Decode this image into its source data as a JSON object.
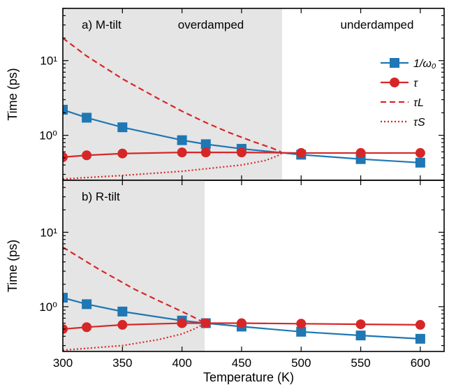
{
  "chart_data": {
    "type": "line",
    "shared": {
      "xlabel": "Temperature (K)",
      "xlim": [
        300,
        620
      ],
      "xticks": [
        300,
        350,
        400,
        450,
        500,
        550,
        600
      ],
      "ylabel": "Time (ps)",
      "yscale": "log",
      "ylim": [
        0.25,
        50
      ],
      "ytick_labels": [
        "10⁰",
        "10¹"
      ],
      "colors": {
        "blue": "#1f77b4",
        "red": "#d62728",
        "shade": "#e5e5e5"
      }
    },
    "legend": {
      "placement": "right, top panel",
      "entries": [
        {
          "key": "inv_omega0",
          "label": "1/ω₀",
          "marker": "square",
          "line": "solid",
          "color": "#1f77b4"
        },
        {
          "key": "tau",
          "label": "τ",
          "marker": "circle",
          "line": "solid",
          "color": "#d62728"
        },
        {
          "key": "tauL",
          "label": "τL",
          "marker": "none",
          "line": "dashed",
          "color": "#d62728"
        },
        {
          "key": "tauS",
          "label": "τS",
          "marker": "none",
          "line": "dotted",
          "color": "#d62728"
        }
      ]
    },
    "panels": [
      {
        "label": "a) M-tilt",
        "overdamped_label": "overdamped",
        "underdamped_label": "underdamped",
        "shade_range": [
          300,
          484
        ],
        "series": [
          {
            "key": "inv_omega0",
            "x": [
              300,
              320,
              350,
              400,
              420,
              450,
              500,
              550,
              600
            ],
            "y": [
              2.2,
              1.72,
              1.28,
              0.86,
              0.76,
              0.66,
              0.55,
              0.48,
              0.43
            ]
          },
          {
            "key": "tau",
            "x": [
              300,
              320,
              350,
              400,
              420,
              450,
              500,
              550,
              600
            ],
            "y": [
              0.51,
              0.54,
              0.57,
              0.59,
              0.59,
              0.59,
              0.58,
              0.58,
              0.58
            ]
          },
          {
            "key": "tauL",
            "x": [
              300,
              320,
              350,
              380,
              400,
              420,
              440,
              460,
              475,
              482,
              484
            ],
            "y": [
              20,
              11.5,
              5.7,
              3.1,
              2.1,
              1.48,
              1.08,
              0.82,
              0.68,
              0.61,
              0.58
            ]
          },
          {
            "key": "tauS",
            "x": [
              300,
              350,
              400,
              450,
              470,
              480,
              484
            ],
            "y": [
              0.26,
              0.29,
              0.33,
              0.4,
              0.46,
              0.53,
              0.58
            ]
          }
        ]
      },
      {
        "label": "b) R-tilt",
        "shade_range": [
          300,
          419
        ],
        "series": [
          {
            "key": "inv_omega0",
            "x": [
              300,
              320,
              350,
              400,
              420,
              450,
              500,
              550,
              600
            ],
            "y": [
              1.32,
              1.08,
              0.86,
              0.65,
              0.6,
              0.54,
              0.46,
              0.41,
              0.37
            ]
          },
          {
            "key": "tau",
            "x": [
              300,
              320,
              350,
              400,
              420,
              450,
              500,
              550,
              600
            ],
            "y": [
              0.5,
              0.53,
              0.57,
              0.6,
              0.6,
              0.6,
              0.59,
              0.58,
              0.57
            ]
          },
          {
            "key": "tauL",
            "x": [
              300,
              330,
              360,
              380,
              400,
              410,
              416,
              419
            ],
            "y": [
              6.3,
              3.2,
              1.72,
              1.21,
              0.86,
              0.72,
              0.64,
              0.6
            ]
          },
          {
            "key": "tauS",
            "x": [
              300,
              350,
              380,
              400,
              410,
              416,
              419
            ],
            "y": [
              0.26,
              0.3,
              0.36,
              0.43,
              0.5,
              0.56,
              0.6
            ]
          }
        ]
      }
    ]
  }
}
